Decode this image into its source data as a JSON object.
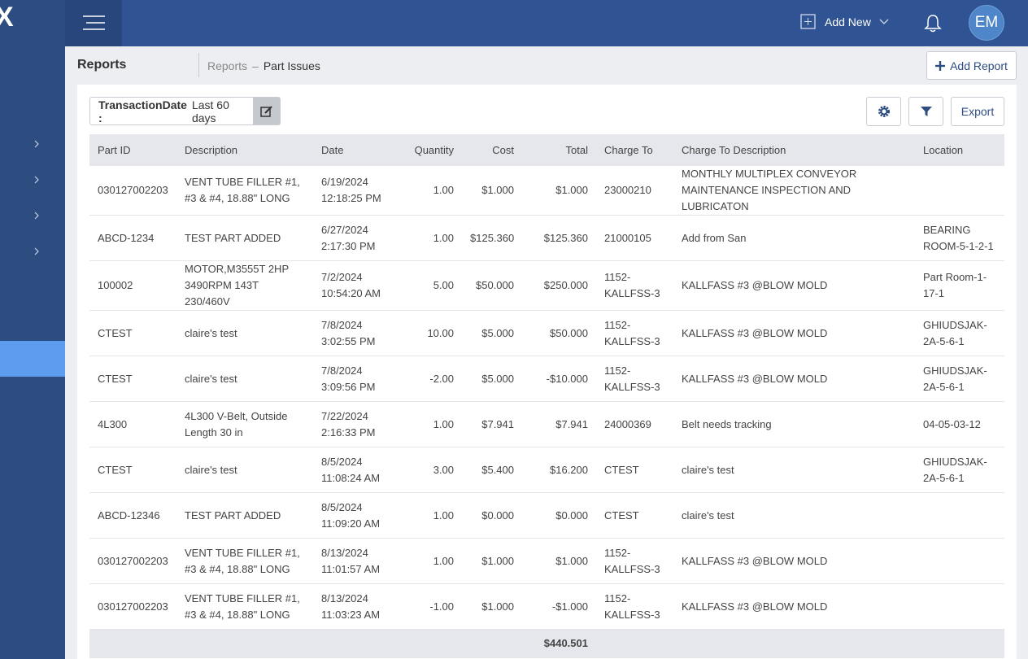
{
  "header": {
    "logo": "X",
    "add_new": "Add New",
    "avatar": "EM"
  },
  "page": {
    "title": "Reports",
    "breadcrumb": [
      "Reports",
      "Part Issues"
    ],
    "separator": "–",
    "add_report": "Add Report"
  },
  "filter": {
    "label": "TransactionDate :",
    "value": "Last 60 days"
  },
  "export": "Export",
  "table": {
    "columns": [
      "Part ID",
      "Description",
      "Date",
      "Quantity",
      "Cost",
      "Total",
      "Charge To",
      "Charge To Description",
      "Location"
    ],
    "rows": [
      [
        "030127002203",
        "VENT TUBE FILLER #1, #3 & #4, 18.88\" LONG",
        "6/19/2024 12:18:25 PM",
        "1.00",
        "$1.000",
        "$1.000",
        "23000210",
        "MONTHLY MULTIPLEX CONVEYOR MAINTENANCE INSPECTION AND LUBRICATON",
        null
      ],
      [
        "ABCD-1234",
        "TEST PART ADDED",
        "6/27/2024 2:17:30 PM",
        "1.00",
        "$125.360",
        "$125.360",
        "21000105",
        "Add from San",
        "BEARING ROOM-5-1-2-1"
      ],
      [
        "100002",
        "MOTOR,M3555T 2HP 3490RPM 143T 230/460V",
        "7/2/2024 10:54:20 AM",
        "5.00",
        "$50.000",
        "$250.000",
        "1152-KALLFSS-3",
        "KALLFASS #3 @BLOW MOLD",
        "Part Room-1-17-1"
      ],
      [
        "CTEST",
        "claire's test",
        "7/8/2024 3:02:55 PM",
        "10.00",
        "$5.000",
        "$50.000",
        "1152-KALLFSS-3",
        "KALLFASS #3 @BLOW MOLD",
        "GHIUDSJAK-2A-5-6-1"
      ],
      [
        "CTEST",
        "claire's test",
        "7/8/2024 3:09:56 PM",
        "-2.00",
        "$5.000",
        "-$10.000",
        "1152-KALLFSS-3",
        "KALLFASS #3 @BLOW MOLD",
        "GHIUDSJAK-2A-5-6-1"
      ],
      [
        "4L300",
        "4L300 V-Belt, Outside Length 30 in",
        "7/22/2024 2:16:33 PM",
        "1.00",
        "$7.941",
        "$7.941",
        "24000369",
        "Belt needs tracking",
        "04-05-03-12"
      ],
      [
        "CTEST",
        "claire's test",
        "8/5/2024 11:08:24 AM",
        "3.00",
        "$5.400",
        "$16.200",
        "CTEST",
        "claire's test",
        "GHIUDSJAK-2A-5-6-1"
      ],
      [
        "ABCD-12346",
        "TEST PART ADDED",
        "8/5/2024 11:09:20 AM",
        "1.00",
        "$0.000",
        "$0.000",
        "CTEST",
        "claire's test",
        null
      ],
      [
        "030127002203",
        "VENT TUBE FILLER #1, #3 & #4, 18.88\" LONG",
        "8/13/2024 11:01:57 AM",
        "1.00",
        "$1.000",
        "$1.000",
        "1152-KALLFSS-3",
        "KALLFASS #3 @BLOW MOLD",
        null
      ],
      [
        "030127002203",
        "VENT TUBE FILLER #1, #3 & #4, 18.88\" LONG",
        "8/13/2024 11:03:23 AM",
        "-1.00",
        "$1.000",
        "-$1.000",
        "1152-KALLFSS-3",
        "KALLFASS #3 @BLOW MOLD",
        null
      ]
    ],
    "total": "$440.501"
  }
}
